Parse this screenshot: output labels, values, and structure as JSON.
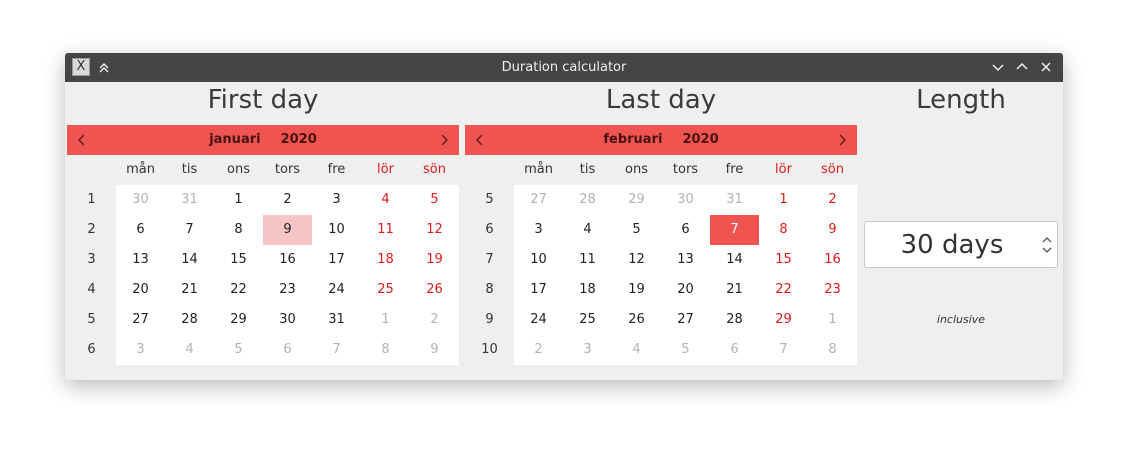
{
  "window": {
    "title": "Duration calculator"
  },
  "icons": {
    "app": "app-icon",
    "keep_above": "keep-above-icon",
    "minimize": "minimize-icon",
    "maximize": "maximize-icon",
    "close": "close-icon"
  },
  "first": {
    "heading": "First day",
    "month": "januari",
    "year": "2020",
    "weekday_headers": [
      "mån",
      "tis",
      "ons",
      "tors",
      "fre",
      "lör",
      "sön"
    ],
    "week_numbers": [
      "1",
      "2",
      "3",
      "4",
      "5",
      "6"
    ],
    "days": [
      [
        "30",
        "31",
        "1",
        "2",
        "3",
        "4",
        "5"
      ],
      [
        "6",
        "7",
        "8",
        "9",
        "10",
        "11",
        "12"
      ],
      [
        "13",
        "14",
        "15",
        "16",
        "17",
        "18",
        "19"
      ],
      [
        "20",
        "21",
        "22",
        "23",
        "24",
        "25",
        "26"
      ],
      [
        "27",
        "28",
        "29",
        "30",
        "31",
        "1",
        "2"
      ],
      [
        "3",
        "4",
        "5",
        "6",
        "7",
        "8",
        "9"
      ]
    ],
    "other_month": [
      [
        1,
        1,
        0,
        0,
        0,
        0,
        0
      ],
      [
        0,
        0,
        0,
        0,
        0,
        0,
        0
      ],
      [
        0,
        0,
        0,
        0,
        0,
        0,
        0
      ],
      [
        0,
        0,
        0,
        0,
        0,
        0,
        0
      ],
      [
        0,
        0,
        0,
        0,
        0,
        1,
        1
      ],
      [
        1,
        1,
        1,
        1,
        1,
        1,
        1
      ]
    ],
    "selected_day": "9"
  },
  "last": {
    "heading": "Last day",
    "month": "februari",
    "year": "2020",
    "weekday_headers": [
      "mån",
      "tis",
      "ons",
      "tors",
      "fre",
      "lör",
      "sön"
    ],
    "week_numbers": [
      "5",
      "6",
      "7",
      "8",
      "9",
      "10"
    ],
    "days": [
      [
        "27",
        "28",
        "29",
        "30",
        "31",
        "1",
        "2"
      ],
      [
        "3",
        "4",
        "5",
        "6",
        "7",
        "8",
        "9"
      ],
      [
        "10",
        "11",
        "12",
        "13",
        "14",
        "15",
        "16"
      ],
      [
        "17",
        "18",
        "19",
        "20",
        "21",
        "22",
        "23"
      ],
      [
        "24",
        "25",
        "26",
        "27",
        "28",
        "29",
        "1"
      ],
      [
        "2",
        "3",
        "4",
        "5",
        "6",
        "7",
        "8"
      ]
    ],
    "other_month": [
      [
        1,
        1,
        1,
        1,
        1,
        0,
        0
      ],
      [
        0,
        0,
        0,
        0,
        0,
        0,
        0
      ],
      [
        0,
        0,
        0,
        0,
        0,
        0,
        0
      ],
      [
        0,
        0,
        0,
        0,
        0,
        0,
        0
      ],
      [
        0,
        0,
        0,
        0,
        0,
        0,
        1
      ],
      [
        1,
        1,
        1,
        1,
        1,
        1,
        1
      ]
    ],
    "selected_day": "7"
  },
  "length": {
    "heading": "Length",
    "value": "30 days",
    "note": "inclusive"
  },
  "colors": {
    "accent": "#f05450",
    "weekend": "#e01b1b",
    "range_highlight": "#f6c5c5",
    "titlebar": "#454545"
  }
}
